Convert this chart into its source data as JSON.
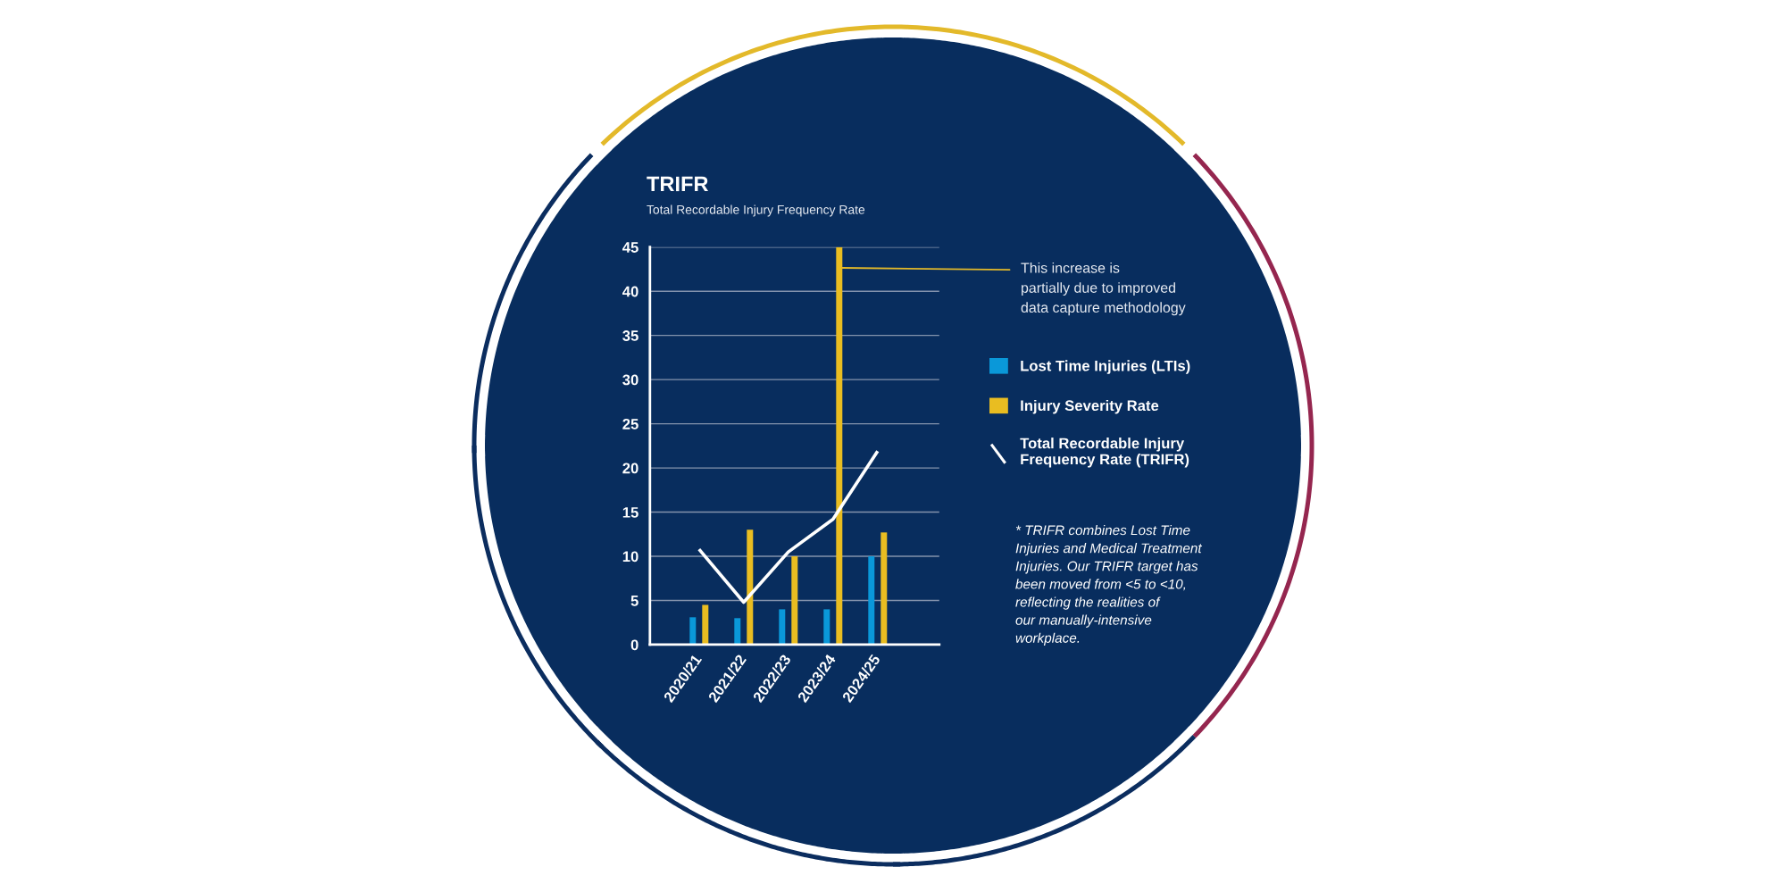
{
  "chart_data": {
    "type": "bar",
    "title": "TRIFR",
    "subtitle": "Total Recordable Injury Frequency Rate",
    "categories": [
      "2020/21",
      "2021/22",
      "2022/23",
      "2023/24",
      "2024/25"
    ],
    "series": [
      {
        "name": "Lost Time Injuries (LTIs)",
        "color": "#0a98d9",
        "values": [
          3.1,
          3.0,
          4,
          4,
          10
        ]
      },
      {
        "name": "Injury Severity Rate",
        "color": "#e9bd21",
        "values": [
          4.5,
          13,
          10,
          45,
          12.7
        ]
      },
      {
        "name": "Total Recordable Injury\nFrequency Rate (TRIFR)",
        "type": "line",
        "color": "#ffffff",
        "values": [
          10.8,
          4.8,
          10.5,
          14.2,
          21.9
        ]
      }
    ],
    "ylim": [
      0,
      45
    ],
    "yticks": [
      0,
      5,
      10,
      15,
      20,
      25,
      30,
      35,
      40,
      45
    ],
    "grid": "y",
    "legend": "right",
    "annotations": [
      "This increase is\npartially due to improved\ndata capture methodology",
      "* TRIFR combines Lost Time\nInjuries and Medical Treatment\nInjuries. Our TRIFR target has\nbeen moved from <5 to <10,\nreflecting the realities of\nour manually-intensive\nworkplace."
    ]
  }
}
